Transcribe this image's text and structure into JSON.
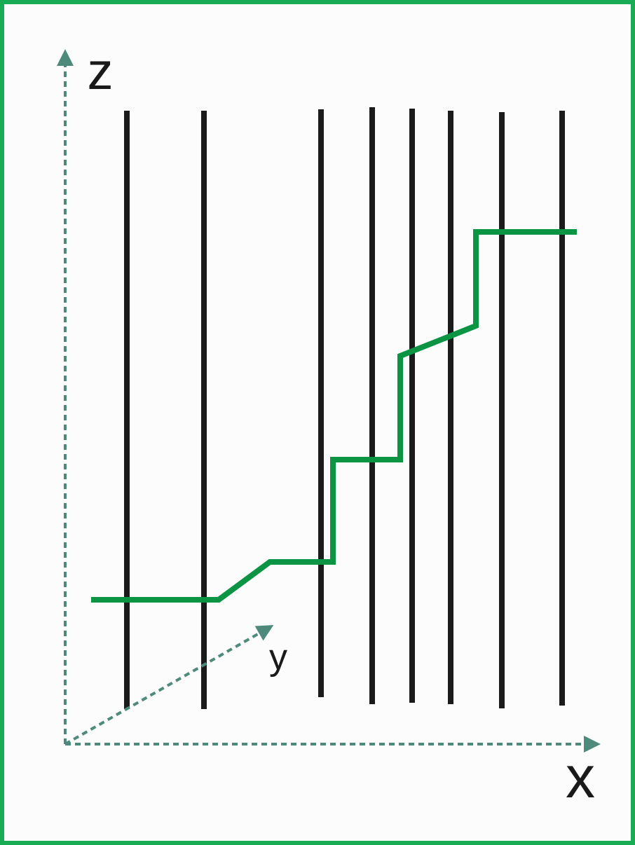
{
  "axes": {
    "z": "z",
    "y": "y",
    "x": "x"
  }
}
